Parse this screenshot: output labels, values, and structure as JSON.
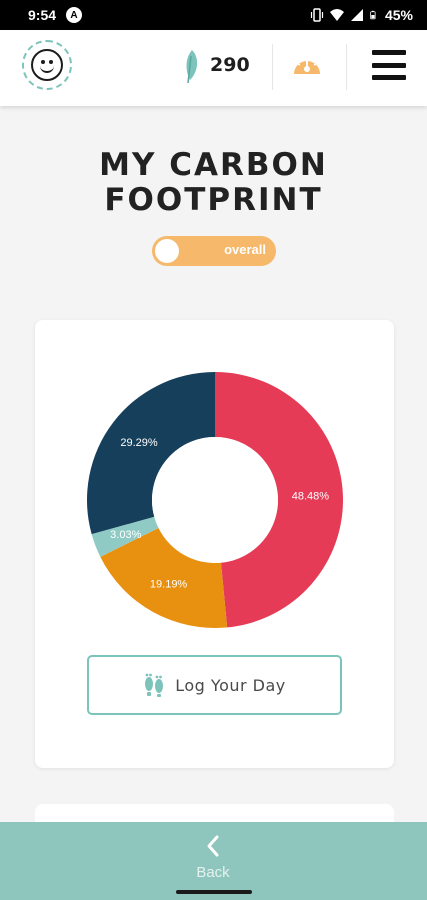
{
  "status_bar": {
    "time": "9:54",
    "app_icon": "A",
    "battery": "45%",
    "icons": [
      "vibrate-icon",
      "wifi-icon",
      "signal-icon",
      "battery-icon"
    ]
  },
  "header": {
    "avatar_icon": "smiley-icon",
    "leaf_icon": "leaf-icon",
    "points": "290",
    "gauge_icon": "gauge-icon",
    "menu_icon": "hamburger-menu-icon"
  },
  "title": {
    "line1": "MY CARBON",
    "line2": "FOOTPRINT"
  },
  "toggle": {
    "label": "overall",
    "state": "off"
  },
  "chart_data": {
    "type": "pie",
    "categories": [
      "",
      "",
      "",
      ""
    ],
    "values": [
      48.48,
      19.19,
      3.03,
      29.29
    ],
    "labels": [
      "48.48%",
      "19.19%",
      "3.03%",
      "29.29%"
    ],
    "colors": [
      "#e63b57",
      "#e8900f",
      "#8fcbc4",
      "#163f5c"
    ],
    "donut": true
  },
  "log_button": {
    "label": "Log Your Day",
    "icon": "footprints-icon"
  },
  "bottom_nav": {
    "back_label": "Back",
    "back_icon": "chevron-left-icon"
  },
  "colors": {
    "accent_teal": "#8ec6be",
    "toggle_orange": "#f6b96b",
    "title_dark": "#222222"
  }
}
